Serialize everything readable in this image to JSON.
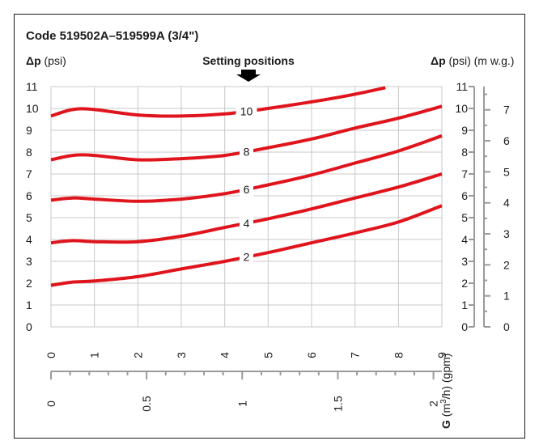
{
  "chart_data": {
    "type": "line",
    "title": "Code 519502A–519599A (3/4\")",
    "left_axis_label": {
      "symbol": "Δp",
      "unit": "(psi)"
    },
    "right_axis_label": {
      "symbol": "Δp",
      "unit1": "(psi)",
      "unit2": "(m w.g.)"
    },
    "annotation": "Setting positions",
    "x_axis_label": "G (m³/h) (gpm)",
    "x_label_parts": {
      "bold": "G",
      "unit_pre": " (m",
      "unit_sup": "3",
      "unit_post": "/h) (gpm)"
    },
    "y_range_psi": [
      0,
      11
    ],
    "y_ticks_psi": [
      "0",
      "1",
      "2",
      "3",
      "4",
      "5",
      "6",
      "7",
      "8",
      "9",
      "10",
      "11"
    ],
    "y_range_mwg": [
      0,
      7.75
    ],
    "y_ticks_mwg": [
      "0",
      "1",
      "2",
      "3",
      "4",
      "5",
      "6",
      "7"
    ],
    "x_range_gpm": [
      0,
      9
    ],
    "x_ticks_gpm": [
      "0",
      "1",
      "2",
      "3",
      "4",
      "5",
      "6",
      "7",
      "8",
      "9"
    ],
    "x_range_m3h": [
      0,
      2.044
    ],
    "x_ticks_m3h": [
      "0",
      "0.5",
      "1",
      "1.5",
      "2"
    ],
    "grid": true,
    "line_color": "#e0141c",
    "series": [
      {
        "name": "2",
        "x": [
          0,
          0.5,
          1,
          2,
          3,
          4,
          5,
          6,
          7,
          8,
          9
        ],
        "y": [
          1.9,
          2.05,
          2.1,
          2.3,
          2.65,
          3.0,
          3.4,
          3.85,
          4.3,
          4.8,
          5.55
        ]
      },
      {
        "name": "4",
        "x": [
          0,
          0.5,
          1,
          2,
          3,
          4,
          5,
          6,
          7,
          8,
          9
        ],
        "y": [
          3.85,
          3.95,
          3.9,
          3.9,
          4.15,
          4.55,
          4.95,
          5.4,
          5.9,
          6.4,
          7.0
        ]
      },
      {
        "name": "6",
        "x": [
          0,
          0.5,
          1,
          2,
          3,
          4,
          5,
          6,
          7,
          8,
          9
        ],
        "y": [
          5.8,
          5.9,
          5.85,
          5.75,
          5.85,
          6.1,
          6.5,
          6.95,
          7.5,
          8.05,
          8.75
        ]
      },
      {
        "name": "8",
        "x": [
          0,
          0.5,
          1,
          2,
          3,
          4,
          5,
          6,
          7,
          8,
          9
        ],
        "y": [
          7.65,
          7.85,
          7.85,
          7.65,
          7.7,
          7.85,
          8.2,
          8.6,
          9.1,
          9.55,
          10.1
        ]
      },
      {
        "name": "10",
        "x": [
          0,
          0.5,
          1,
          2,
          3,
          4,
          5,
          6,
          7,
          7.7
        ],
        "y": [
          9.65,
          9.95,
          9.95,
          9.7,
          9.65,
          9.75,
          10.0,
          10.3,
          10.65,
          10.95
        ]
      }
    ],
    "curve_label_x": 4.5
  }
}
